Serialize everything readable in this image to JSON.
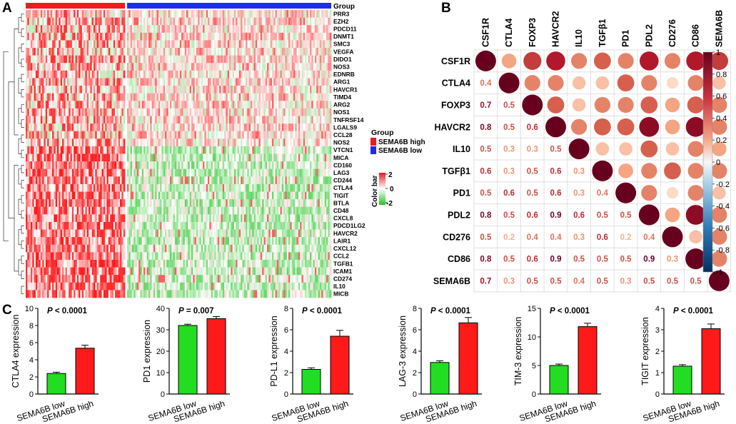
{
  "panels": {
    "a": "A",
    "b": "B",
    "c": "C"
  },
  "heatmap": {
    "group_label": "Group",
    "genes": [
      "PRR3",
      "EZH2",
      "PDCD11",
      "DNMT1",
      "SMC3",
      "VEGFA",
      "DIDO1",
      "NOS3",
      "EDNRB",
      "ARG1",
      "HAVCR1",
      "TIMD4",
      "ARG2",
      "NOS1",
      "TNFRSF14",
      "LGALS9",
      "CCL28",
      "NOS2",
      "VTCN1",
      "MICA",
      "CD160",
      "LAG3",
      "CD244",
      "CTLA4",
      "TIGIT",
      "BTLA",
      "CD48",
      "CXCL8",
      "PDCD1LG2",
      "HAVCR2",
      "LAIR1",
      "CXCL12",
      "CCL2",
      "TGFB1",
      "ICAM1",
      "CD274",
      "IL10",
      "MICB"
    ],
    "legend": {
      "title": "Group",
      "items": [
        {
          "label": "SEMA6B high",
          "color": "#ee1c1c"
        },
        {
          "label": "SEMA6B low",
          "color": "#1c2ee8"
        }
      ]
    },
    "colorbar": {
      "title": "Color bar",
      "ticks": [
        "2",
        "0",
        "-2"
      ]
    },
    "colors": {
      "high": "#e31a1c",
      "mid": "#ffffff",
      "low": "#22c322"
    }
  },
  "corr": {
    "labels": [
      "CSF1R",
      "CTLA4",
      "FOXP3",
      "HAVCR2",
      "IL10",
      "TGFβ1",
      "PD1",
      "PDL2",
      "CD276",
      "CD86",
      "SEMA6B"
    ],
    "matrix": [
      [
        1.0,
        0.4,
        0.7,
        0.8,
        0.5,
        0.6,
        0.5,
        0.8,
        0.5,
        0.8,
        0.7
      ],
      [
        0.4,
        1.0,
        0.5,
        0.5,
        0.3,
        0.3,
        0.6,
        0.5,
        0.2,
        0.5,
        0.3
      ],
      [
        0.7,
        0.5,
        1.0,
        0.6,
        0.3,
        0.5,
        0.5,
        0.6,
        0.4,
        0.6,
        0.5
      ],
      [
        0.8,
        0.5,
        0.6,
        1.0,
        0.5,
        0.6,
        0.6,
        0.9,
        0.4,
        0.9,
        0.5
      ],
      [
        0.5,
        0.3,
        0.3,
        0.5,
        1.0,
        0.3,
        0.3,
        0.6,
        0.3,
        0.5,
        0.4
      ],
      [
        0.6,
        0.3,
        0.5,
        0.6,
        0.3,
        1.0,
        0.4,
        0.5,
        0.6,
        0.5,
        0.5
      ],
      [
        0.5,
        0.6,
        0.5,
        0.6,
        0.3,
        0.4,
        1.0,
        0.5,
        0.2,
        0.5,
        0.3
      ],
      [
        0.8,
        0.5,
        0.6,
        0.9,
        0.6,
        0.5,
        0.5,
        1.0,
        0.4,
        0.9,
        0.5
      ],
      [
        0.5,
        0.2,
        0.4,
        0.4,
        0.3,
        0.6,
        0.2,
        0.4,
        1.0,
        0.3,
        0.5
      ],
      [
        0.8,
        0.5,
        0.6,
        0.9,
        0.5,
        0.5,
        0.5,
        0.9,
        0.3,
        1.0,
        0.5
      ],
      [
        0.7,
        0.3,
        0.5,
        0.5,
        0.4,
        0.5,
        0.3,
        0.5,
        0.5,
        0.5,
        1.0
      ]
    ],
    "colorbar_ticks": [
      "1",
      "0.8",
      "0.6",
      "0.4",
      "0.2",
      "0",
      "-0.2",
      "-0.4",
      "-0.6",
      "-0.8",
      "-1"
    ]
  },
  "chart_data": [
    {
      "type": "bar",
      "categories": [
        "SEMA6B low",
        "SEMA6B high"
      ],
      "values": [
        2.4,
        5.35
      ],
      "errors": [
        0.15,
        0.35
      ],
      "ylabel": "CTLA4 expression",
      "pvalue": "P < 0.0001",
      "ylim": [
        0,
        10
      ],
      "yticks": [
        "0",
        "2",
        "4",
        "6",
        "8",
        "10"
      ],
      "colors": [
        "#22dd22",
        "#ff1a1a"
      ]
    },
    {
      "type": "bar",
      "categories": [
        "SEMA6B low",
        "SEMA6B high"
      ],
      "values": [
        32,
        35.2
      ],
      "errors": [
        0.6,
        1.0
      ],
      "ylabel": "PD1 expression",
      "pvalue": "P = 0.007",
      "ylim": [
        0,
        40
      ],
      "yticks": [
        "0",
        "10",
        "20",
        "30",
        "40"
      ],
      "colors": [
        "#22dd22",
        "#ff1a1a"
      ]
    },
    {
      "type": "bar",
      "categories": [
        "SEMA6B low",
        "SEMA6B high"
      ],
      "values": [
        2.3,
        5.4
      ],
      "errors": [
        0.15,
        0.55
      ],
      "ylabel": "PD-L1 expression",
      "pvalue": "P < 0.0001",
      "ylim": [
        0,
        8
      ],
      "yticks": [
        "0",
        "2",
        "4",
        "6",
        "8"
      ],
      "colors": [
        "#22dd22",
        "#ff1a1a"
      ]
    },
    {
      "type": "bar",
      "categories": [
        "SEMA6B low",
        "SEMA6B high"
      ],
      "values": [
        2.95,
        6.65
      ],
      "errors": [
        0.15,
        0.5
      ],
      "ylabel": "LAG-3 expression",
      "pvalue": "P < 0.0001",
      "ylim": [
        0,
        8
      ],
      "yticks": [
        "0",
        "2",
        "4",
        "6",
        "8"
      ],
      "colors": [
        "#22dd22",
        "#ff1a1a"
      ]
    },
    {
      "type": "bar",
      "categories": [
        "SEMA6B low",
        "SEMA6B high"
      ],
      "values": [
        5.0,
        11.8
      ],
      "errors": [
        0.25,
        0.6
      ],
      "ylabel": "TIM-3 expression",
      "pvalue": "P < 0.0001",
      "ylim": [
        0,
        15
      ],
      "yticks": [
        "0",
        "5",
        "10",
        "15"
      ],
      "colors": [
        "#22dd22",
        "#ff1a1a"
      ]
    },
    {
      "type": "bar",
      "categories": [
        "SEMA6B low",
        "SEMA6B high"
      ],
      "values": [
        1.3,
        3.05
      ],
      "errors": [
        0.07,
        0.22
      ],
      "ylabel": "TIGIT expression",
      "pvalue": "P < 0.0001",
      "ylim": [
        0,
        4
      ],
      "yticks": [
        "0",
        "1",
        "2",
        "3",
        "4"
      ],
      "colors": [
        "#22dd22",
        "#ff1a1a"
      ]
    }
  ]
}
